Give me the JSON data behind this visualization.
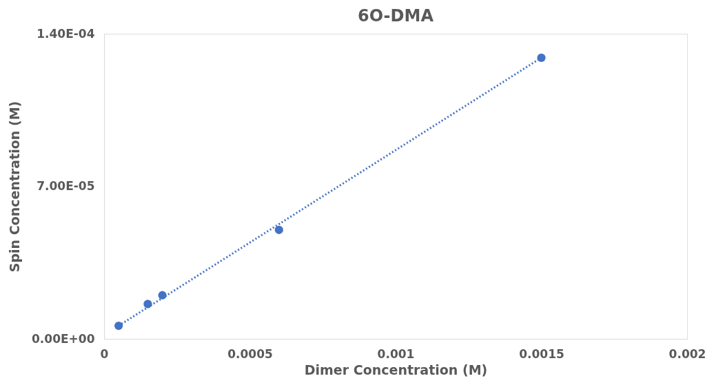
{
  "chart_data": {
    "type": "scatter",
    "title": "6O-DMA",
    "xlabel": "Dimer Concentration (M)",
    "ylabel": "Spin Concentration (M)",
    "series": [
      {
        "color": "#4472c4",
        "marker": "circle",
        "x": [
          5e-05,
          0.00015,
          0.0002,
          0.0006,
          0.0015
        ],
        "values": [
          6e-06,
          1.6e-05,
          2e-05,
          5e-05,
          0.000129
        ]
      },
      {
        "type": "line",
        "color": "#4472c4",
        "line_style": "dotted",
        "x": [
          5e-05,
          0.0015
        ],
        "values": [
          6e-06,
          0.000129
        ]
      }
    ],
    "xlim": [
      0,
      0.002
    ],
    "xticks": [
      0,
      0.0005,
      0.001,
      0.0015,
      0.002
    ],
    "ylim": [
      0,
      0.00014
    ],
    "yticks": [
      {
        "value": 0,
        "label": "0.00E+00"
      },
      {
        "value": 7e-05,
        "label": "7.00E-05"
      },
      {
        "value": 0.00014,
        "label": "1.40E-04"
      }
    ],
    "grid": false
  }
}
